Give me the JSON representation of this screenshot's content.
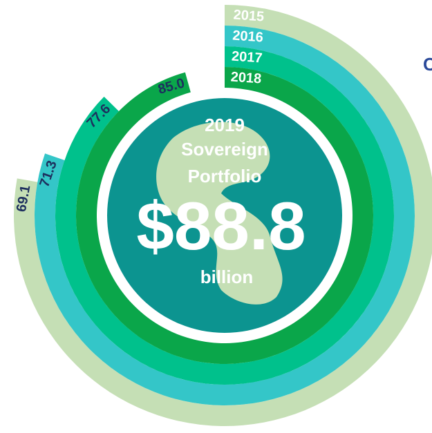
{
  "chart_data": {
    "type": "radial_bar",
    "categories": [
      "2015",
      "2016",
      "2017",
      "2018"
    ],
    "values": [
      69.1,
      71.3,
      77.6,
      85.0
    ],
    "value_labels": [
      "69.1",
      "71.3",
      "77.6",
      "85.0"
    ],
    "colors": [
      "#c5dfb5",
      "#34c6c8",
      "#00c18c",
      "#0aa64a"
    ],
    "total": 88.8,
    "total_label": "$88.8",
    "center_year": "2019",
    "center_title": [
      "Sovereign",
      "Portfolio"
    ],
    "unit": "billion",
    "side_label": "C"
  }
}
